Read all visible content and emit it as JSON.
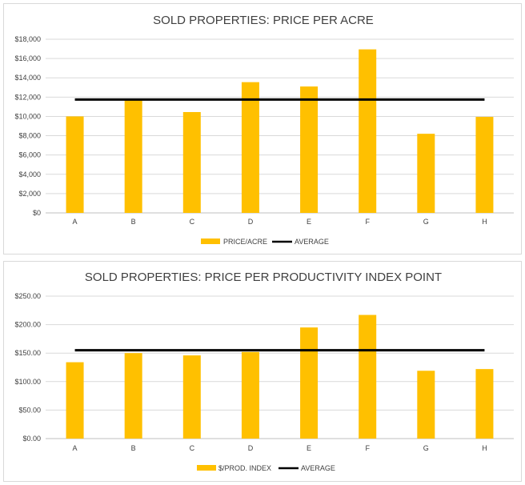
{
  "chart_data": [
    {
      "type": "bar",
      "title": "SOLD PROPERTIES: PRICE PER ACRE",
      "xlabel": "",
      "ylabel": "",
      "categories": [
        "A",
        "B",
        "C",
        "D",
        "E",
        "F",
        "G",
        "H"
      ],
      "series": [
        {
          "name": "PRICE/ACRE",
          "kind": "bar",
          "color": "#FFC000",
          "values": [
            10000,
            11700,
            10450,
            13550,
            13100,
            16950,
            8200,
            9950
          ]
        },
        {
          "name": "AVERAGE",
          "kind": "line",
          "color": "#000000",
          "values": [
            11750,
            11750,
            11750,
            11750,
            11750,
            11750,
            11750,
            11750
          ]
        }
      ],
      "ylim": [
        0,
        18000
      ],
      "yticks": [
        0,
        2000,
        4000,
        6000,
        8000,
        10000,
        12000,
        14000,
        16000,
        18000
      ],
      "ytick_labels": [
        "$0",
        "$2,000",
        "$4,000",
        "$6,000",
        "$8,000",
        "$10,000",
        "$12,000",
        "$14,000",
        "$16,000",
        "$18,000"
      ],
      "grid": true,
      "legend": "bottom"
    },
    {
      "type": "bar",
      "title": "SOLD PROPERTIES: PRICE PER PRODUCTIVITY INDEX  POINT",
      "xlabel": "",
      "ylabel": "",
      "categories": [
        "A",
        "B",
        "C",
        "D",
        "E",
        "F",
        "G",
        "H"
      ],
      "series": [
        {
          "name": "$/PROD. INDEX",
          "kind": "bar",
          "color": "#FFC000",
          "values": [
            134,
            150,
            146,
            152,
            195,
            217,
            119,
            122
          ]
        },
        {
          "name": "AVERAGE",
          "kind": "line",
          "color": "#000000",
          "values": [
            155,
            155,
            155,
            155,
            155,
            155,
            155,
            155
          ]
        }
      ],
      "ylim": [
        0,
        250
      ],
      "yticks": [
        0,
        50,
        100,
        150,
        200,
        250
      ],
      "ytick_labels": [
        "$0.00",
        "$50.00",
        "$100.00",
        "$150.00",
        "$200.00",
        "$250.00"
      ],
      "grid": true,
      "legend": "bottom"
    }
  ],
  "colors": {
    "bar": "#FFC000",
    "average": "#000000",
    "grid": "#d9d9d9",
    "text": "#404040"
  }
}
